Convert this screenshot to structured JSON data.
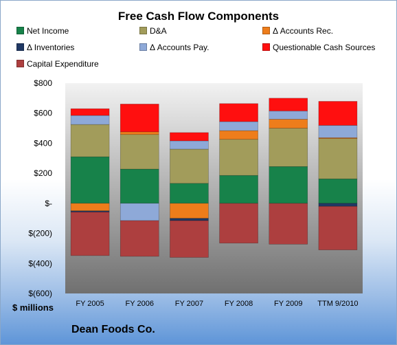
{
  "colors": {
    "net_income": "#17824a",
    "da": "#a29c5b",
    "accounts_rec": "#ee7d1b",
    "inventories": "#203864",
    "accounts_pay": "#8ea9d8",
    "questionable": "#ff0f0f",
    "capex": "#ad3f3f"
  },
  "chart_data": {
    "type": "bar",
    "stacked": true,
    "title": "Free Cash Flow Components",
    "xlabel": "",
    "ylabel": "$ millions",
    "footer": "Dean Foods Co.",
    "ylim": [
      -600,
      800
    ],
    "yticks": [
      800,
      600,
      400,
      200,
      0,
      -200,
      -400,
      -600
    ],
    "ytick_labels": [
      "$800",
      "$600",
      "$400",
      "$200",
      "$-",
      "$(200)",
      "$(400)",
      "$(600)"
    ],
    "grid": false,
    "legend_position": "top",
    "categories": [
      "FY 2005",
      "FY 2006",
      "FY 2007",
      "FY 2008",
      "FY 2009",
      "TTM 9/2010"
    ],
    "series": [
      {
        "name": "Net Income",
        "key": "net_income",
        "values": [
          310,
          228,
          133,
          186,
          245,
          163
        ]
      },
      {
        "name": "D&A",
        "key": "da",
        "values": [
          215,
          230,
          228,
          240,
          255,
          268
        ]
      },
      {
        "name": "Δ Accounts Rec.",
        "key": "accounts_rec",
        "values": [
          -50,
          18,
          -100,
          58,
          60,
          6
        ]
      },
      {
        "name": "Δ Inventories",
        "key": "inventories",
        "values": [
          -8,
          0,
          -15,
          0,
          0,
          -20
        ]
      },
      {
        "name": "Δ Accounts Pay.",
        "key": "accounts_pay",
        "values": [
          60,
          -115,
          55,
          60,
          55,
          82
        ]
      },
      {
        "name": "Questionable Cash Sources",
        "key": "questionable",
        "values": [
          45,
          185,
          55,
          120,
          85,
          160
        ]
      },
      {
        "name": "Capital Expenditure",
        "key": "capex",
        "values": [
          -290,
          -238,
          -245,
          -265,
          -272,
          -290
        ]
      }
    ]
  }
}
